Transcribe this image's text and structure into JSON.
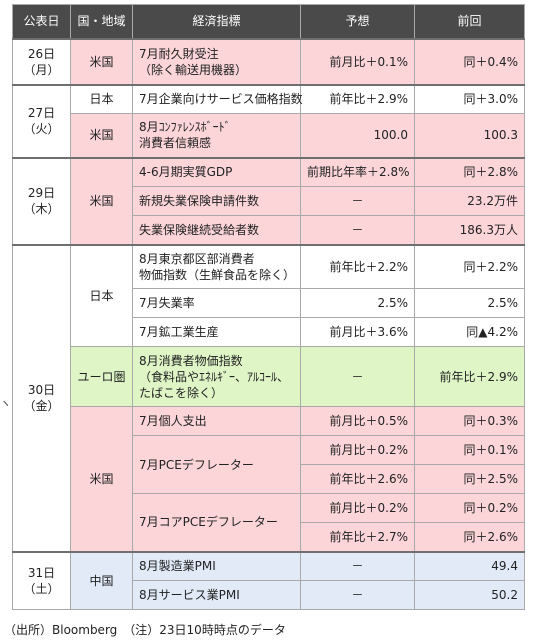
{
  "headers": [
    "公表日",
    "国・地域",
    "経済指標",
    "予想",
    "前回"
  ],
  "rows": [
    {
      "date": "26日\n（月）",
      "country": "米国",
      "country_bg": "pink",
      "ind": "7月耐久財受注\n（除く輸送用機器）",
      "forecast": "前月比＋0.1%",
      "prev": "同＋0.4%",
      "bg": "pink"
    },
    {
      "date": "27日\n（火）",
      "country": "日本",
      "country_bg": "white",
      "ind": "7月企業向けサービス価格指数",
      "forecast": "前年比＋2.9%",
      "prev": "同＋3.0%",
      "bg": "white"
    },
    {
      "country": "米国",
      "country_bg": "pink",
      "ind": "8月ｺﾝﾌｧﾚﾝｽﾎﾞｰﾄﾞ\n消費者信頼感",
      "forecast": "100.0",
      "prev": "100.3",
      "bg": "pink"
    },
    {
      "date": "29日\n（木）",
      "country": "米国",
      "country_bg": "pink",
      "ind": "4-6月期実質GDP",
      "forecast": "前期比年率＋2.8%",
      "prev": "同＋2.8%",
      "bg": "pink"
    },
    {
      "ind": "新規失業保険申請件数",
      "forecast": "－",
      "prev": "23.2万件",
      "bg": "pink"
    },
    {
      "ind": "失業保険継続受給者数",
      "forecast": "－",
      "prev": "186.3万人",
      "bg": "pink"
    },
    {
      "date": "30日\n（金）",
      "country": "日本",
      "country_bg": "white",
      "ind": "8月東京都区部消費者\n物価指数（生鮮食品を除く）",
      "forecast": "前年比＋2.2%",
      "prev": "同＋2.2%",
      "bg": "white"
    },
    {
      "ind": "7月失業率",
      "forecast": "2.5%",
      "prev": "2.5%",
      "bg": "white"
    },
    {
      "ind": "7月鉱工業生産",
      "forecast": "前月比＋3.6%",
      "prev": "同▲4.2%",
      "bg": "white"
    },
    {
      "country": "ユーロ圏",
      "country_bg": "green",
      "ind": "8月消費者物価指数\n（食料品やｴﾈﾙｷﾞｰ、ｱﾙｺｰﾙ、\nたばこを除く）",
      "forecast": "－",
      "prev": "前年比＋2.9%",
      "bg": "green"
    },
    {
      "country": "米国",
      "country_bg": "pink",
      "ind": "7月個人支出",
      "forecast": "前月比＋0.5%",
      "prev": "同＋0.3%",
      "bg": "pink"
    },
    {
      "ind": "7月PCEデフレーター",
      "forecast": "前月比＋0.2%",
      "prev": "同＋0.1%",
      "bg": "pink"
    },
    {
      "forecast": "前年比＋2.6%",
      "prev": "同＋2.5%",
      "bg": "pink"
    },
    {
      "ind": "7月コアPCEデフレーター",
      "forecast": "前月比＋0.2%",
      "prev": "同＋0.2%",
      "bg": "pink"
    },
    {
      "forecast": "前年比＋2.7%",
      "prev": "同＋2.6%",
      "bg": "pink"
    },
    {
      "date": "31日\n（土）",
      "country": "中国",
      "country_bg": "blue",
      "ind": "8月製造業PMI",
      "forecast": "－",
      "prev": "49.4",
      "bg": "blue"
    },
    {
      "ind": "8月サービス業PMI",
      "forecast": "－",
      "prev": "50.2",
      "bg": "blue"
    }
  ],
  "footnote": "（出所）Bloomberg　（注）23日10時時点のデータ",
  "margin_mark": "ヽ",
  "colors": {
    "header_bg": "#4a4a4a",
    "pink": "#fbd5d8",
    "green": "#dff5c6",
    "blue": "#e2eaf8"
  }
}
